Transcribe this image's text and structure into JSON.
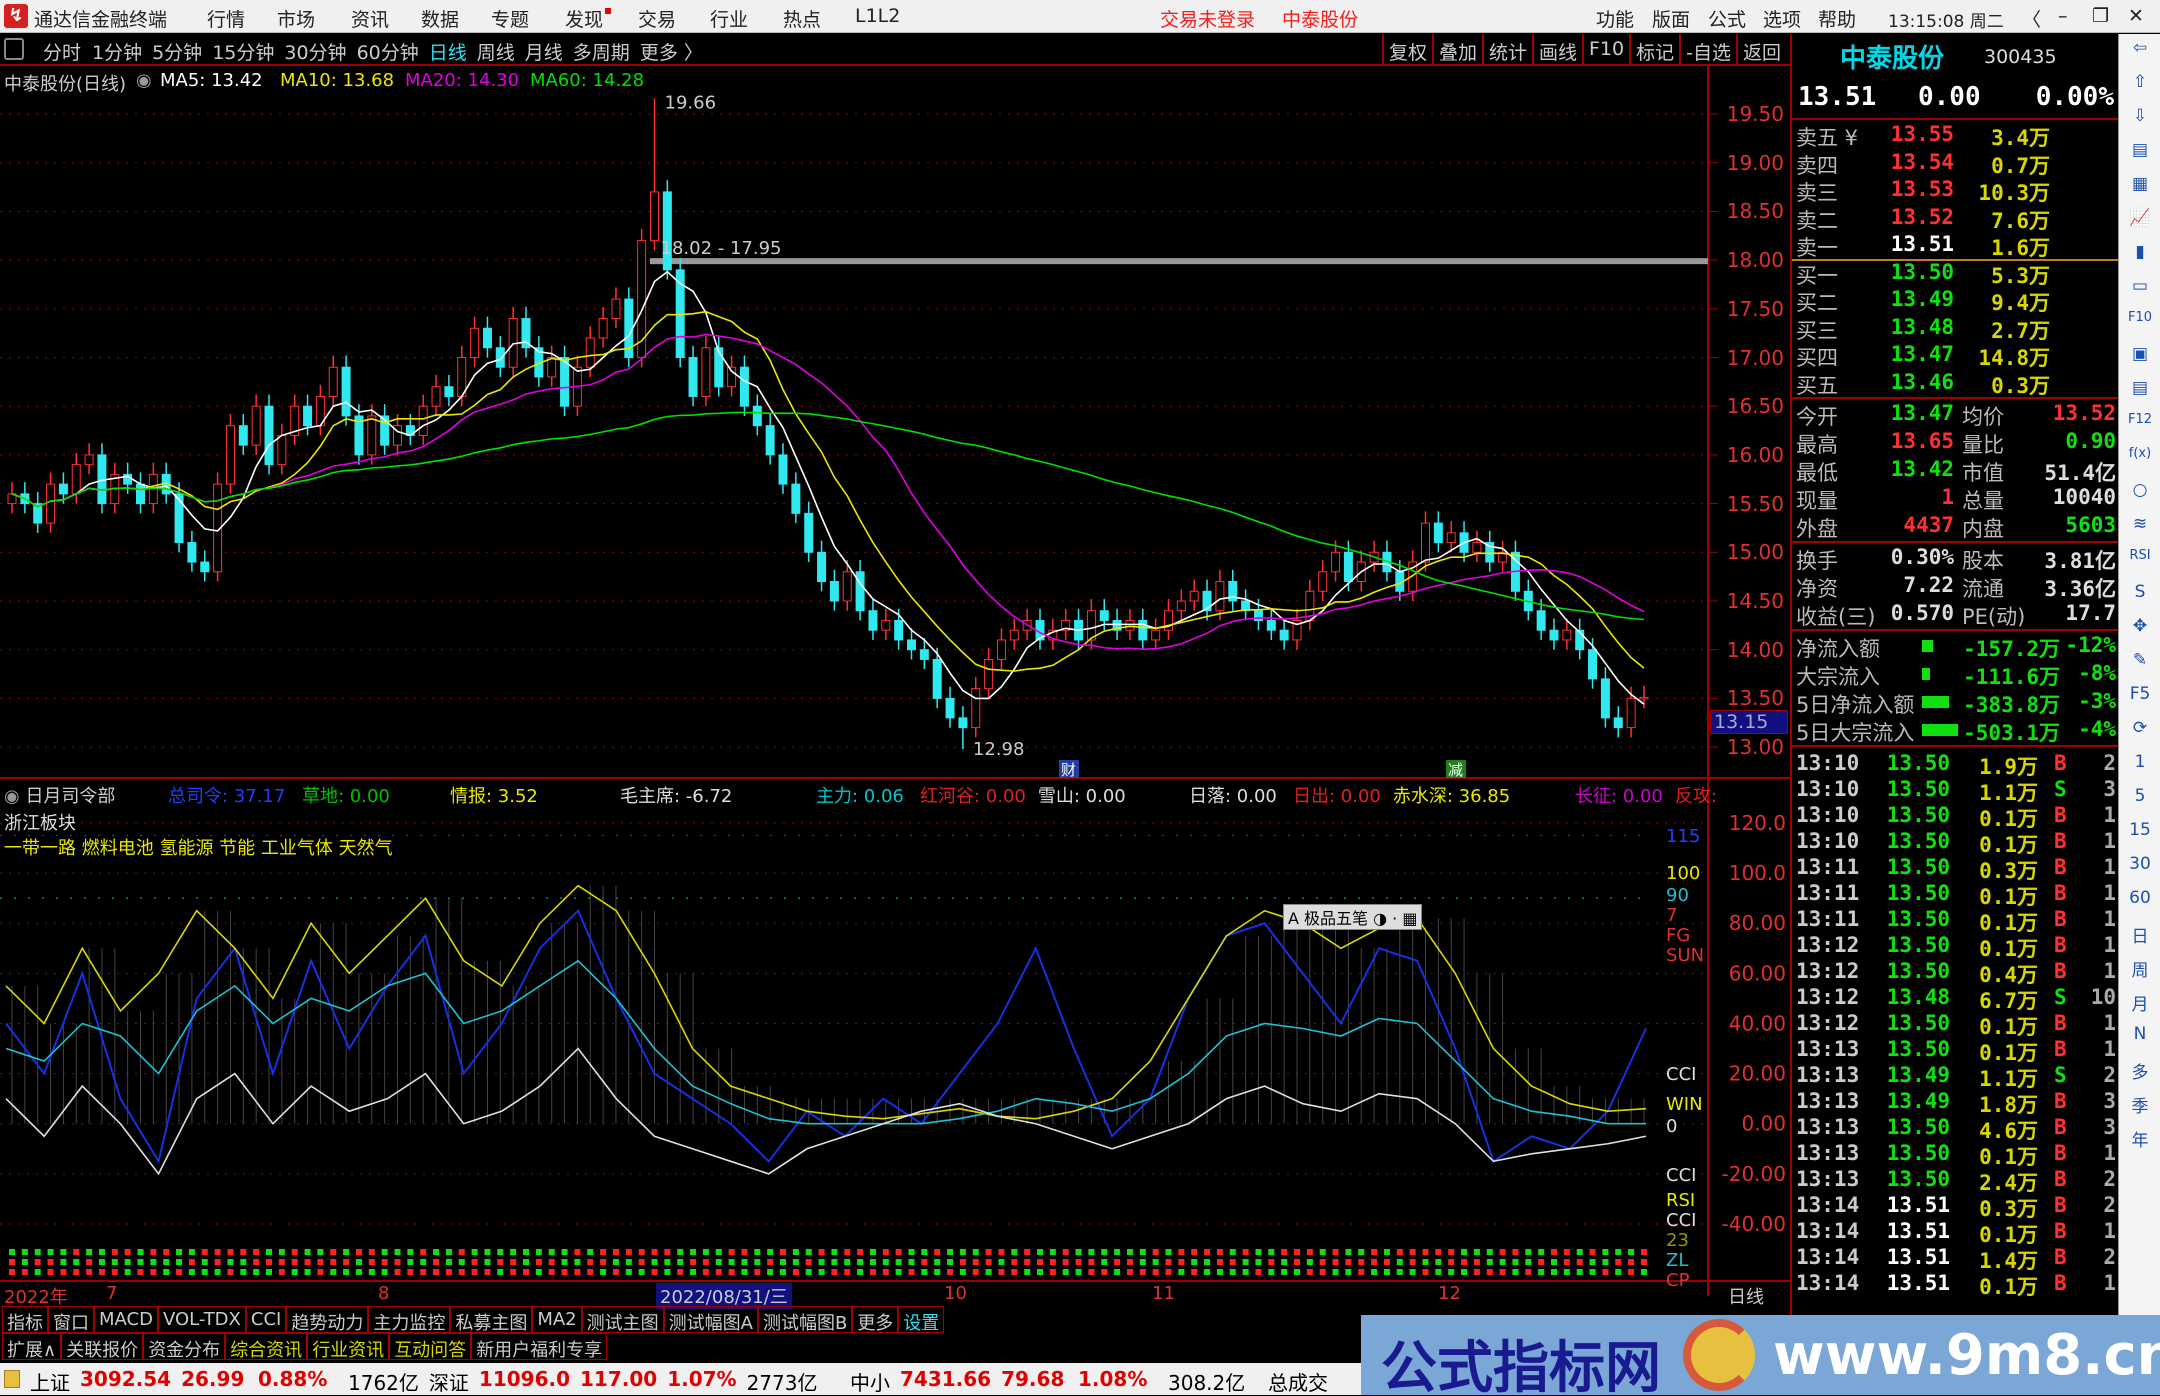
{
  "titlebar": {
    "app": "通达信金融终端",
    "menus": [
      "行情",
      "市场",
      "资讯",
      "数据",
      "专题",
      "发现",
      "交易",
      "行业",
      "热点",
      "L1L2"
    ],
    "trade_status": "交易未登录",
    "stock": "中泰股份",
    "right_menus": [
      "功能",
      "版面",
      "公式",
      "选项",
      "帮助"
    ],
    "clock": "13:15:08 周二"
  },
  "toolbar": {
    "periods": [
      "分时",
      "1分钟",
      "5分钟",
      "15分钟",
      "30分钟",
      "60分钟",
      "日线",
      "周线",
      "月线",
      "多周期",
      "更多 〉"
    ],
    "active": "日线",
    "right": [
      "复权",
      "叠加",
      "统计",
      "画线",
      "F10",
      "标记",
      "-自选",
      "返回"
    ]
  },
  "legend": {
    "name": "中泰股份(日线)",
    "ma5": "MA5: 13.42",
    "ma10": "MA10: 13.68",
    "ma20": "MA20: 14.30",
    "ma60": "MA60: 14.28",
    "colors": {
      "ma5": "#ffffff",
      "ma10": "#e8e800",
      "ma20": "#e000e0",
      "ma60": "#00e000"
    }
  },
  "chart_data": {
    "type": "candlestick",
    "ylim": [
      12.9,
      19.75
    ],
    "y_ticks": [
      "19.50",
      "19.00",
      "18.50",
      "18.00",
      "17.50",
      "17.00",
      "16.50",
      "16.00",
      "15.50",
      "15.00",
      "14.50",
      "14.00",
      "13.50",
      "13.00"
    ],
    "close": [
      15.6,
      15.5,
      15.3,
      15.7,
      15.6,
      15.9,
      16.0,
      15.5,
      15.8,
      15.7,
      15.5,
      15.8,
      15.6,
      15.1,
      14.9,
      14.8,
      15.7,
      16.3,
      16.1,
      16.5,
      15.9,
      16.2,
      16.5,
      16.3,
      16.6,
      16.9,
      16.4,
      16.0,
      16.4,
      16.1,
      16.3,
      16.2,
      16.5,
      16.7,
      16.6,
      17.0,
      17.3,
      17.1,
      16.9,
      17.4,
      17.1,
      16.8,
      17.0,
      16.5,
      16.9,
      17.2,
      17.4,
      17.6,
      17.0,
      18.2,
      18.7,
      17.9,
      17.0,
      16.6,
      17.1,
      16.7,
      16.9,
      16.5,
      16.3,
      16.0,
      15.7,
      15.4,
      15.0,
      14.7,
      14.5,
      14.8,
      14.4,
      14.2,
      14.3,
      14.1,
      14.0,
      13.9,
      13.5,
      13.3,
      13.2,
      13.6,
      13.9,
      14.1,
      14.2,
      14.3,
      14.1,
      14.2,
      14.3,
      14.1,
      14.4,
      14.3,
      14.2,
      14.3,
      14.1,
      14.2,
      14.4,
      14.5,
      14.6,
      14.4,
      14.7,
      14.5,
      14.4,
      14.3,
      14.2,
      14.1,
      14.3,
      14.6,
      14.8,
      15.0,
      14.7,
      14.9,
      15.0,
      14.8,
      14.6,
      14.9,
      15.3,
      15.1,
      15.2,
      15.0,
      15.1,
      14.9,
      15.0,
      14.6,
      14.4,
      14.2,
      14.1,
      14.2,
      14.0,
      13.7,
      13.3,
      13.2,
      13.5,
      13.51
    ],
    "max_label": "19.66",
    "min_label": "12.98",
    "band_label": "18.02 - 17.95",
    "current_box": "13.15",
    "markers": [
      "财",
      "减"
    ]
  },
  "x_axis": {
    "labels": [
      "2022年",
      "7",
      "8",
      "2022/08/31/三",
      "10",
      "11",
      "12"
    ],
    "period": "日线"
  },
  "indicator": {
    "name": "日月司令部",
    "items": [
      {
        "t": "总司令: 37.17",
        "c": "#2040ff"
      },
      {
        "t": "草地: 0.00",
        "c": "#00c000"
      },
      {
        "t": "情报: 3.52",
        "c": "#e8e800"
      },
      {
        "t": "毛主席: -6.72",
        "c": "#dddddd"
      },
      {
        "t": "主力: 0.06",
        "c": "#00c8c8"
      },
      {
        "t": "红河谷: 0.00",
        "c": "#e02020"
      },
      {
        "t": "雪山: 0.00",
        "c": "#dddddd"
      },
      {
        "t": "日落: 0.00",
        "c": "#dddddd"
      },
      {
        "t": "日出: 0.00",
        "c": "#e02020"
      },
      {
        "t": "赤水深: 36.85",
        "c": "#e8e800"
      },
      {
        "t": "长征: 0.00",
        "c": "#d000d0"
      },
      {
        "t": "反攻:",
        "c": "#e02020"
      }
    ],
    "sector": "浙江板块",
    "concepts": "一带一路 燃料电池 氢能源 节能 工业气体 天然气",
    "y_ticks": [
      "120.0",
      "100.0",
      "80.00",
      "60.00",
      "40.00",
      "20.00",
      "0.00",
      "-20.00",
      "-40.00"
    ],
    "right_labels": [
      "115",
      "100",
      "90",
      "7",
      "FG",
      "SUN",
      "CCI",
      "WIN",
      "0",
      "CCI",
      "RSI",
      "CCI",
      "23",
      "ZL",
      "CP"
    ],
    "tooltip": "极品五笔",
    "series": {
      "blue": [
        40,
        20,
        60,
        10,
        -15,
        50,
        70,
        20,
        65,
        30,
        55,
        75,
        20,
        40,
        70,
        85,
        50,
        20,
        10,
        0,
        -15,
        5,
        -5,
        10,
        0,
        20,
        40,
        70,
        30,
        -5,
        10,
        50,
        75,
        80,
        60,
        40,
        70,
        65,
        30,
        -15,
        -5,
        -10,
        5,
        38
      ],
      "yellow": [
        55,
        40,
        70,
        45,
        60,
        85,
        70,
        50,
        80,
        60,
        75,
        90,
        65,
        55,
        80,
        95,
        85,
        60,
        30,
        15,
        10,
        5,
        3,
        2,
        4,
        6,
        3,
        2,
        5,
        10,
        25,
        50,
        75,
        85,
        80,
        70,
        78,
        82,
        60,
        30,
        15,
        8,
        5,
        6
      ],
      "cyan": [
        30,
        25,
        40,
        35,
        20,
        45,
        55,
        40,
        50,
        45,
        55,
        60,
        40,
        45,
        55,
        65,
        50,
        30,
        15,
        8,
        2,
        0,
        0,
        0,
        0,
        2,
        5,
        10,
        8,
        5,
        10,
        20,
        35,
        40,
        38,
        35,
        42,
        40,
        25,
        10,
        5,
        3,
        0,
        0
      ],
      "white": [
        10,
        -5,
        15,
        0,
        -20,
        10,
        20,
        0,
        15,
        5,
        10,
        20,
        0,
        5,
        15,
        30,
        10,
        -5,
        -10,
        -15,
        -20,
        -10,
        -5,
        0,
        5,
        8,
        3,
        0,
        -5,
        -10,
        -5,
        0,
        10,
        15,
        8,
        5,
        12,
        10,
        0,
        -15,
        -12,
        -10,
        -8,
        -5
      ]
    }
  },
  "tabs1": [
    "指标",
    "窗口",
    "MACD",
    "VOL-TDX",
    "CCI",
    "趋势动力",
    "主力监控",
    "私募主图",
    "MA2",
    "测试主图",
    "测试幅图A",
    "测试幅图B",
    "更多",
    "设置"
  ],
  "tabs2": [
    "扩展∧",
    "关联报价",
    "资金分布",
    "综合资讯",
    "行业资讯",
    "互动问答",
    "新用户福利专享"
  ],
  "quote": {
    "name": "中泰股份",
    "code": "300435",
    "price": "13.51",
    "change": "0.00",
    "pct": "0.00%",
    "asks": [
      [
        "卖五 ¥",
        "13.55",
        "3.4万"
      ],
      [
        "卖四",
        "13.54",
        "0.7万"
      ],
      [
        "卖三",
        "13.53",
        "10.3万"
      ],
      [
        "卖二",
        "13.52",
        "7.6万"
      ],
      [
        "卖一",
        "13.51",
        "1.6万"
      ]
    ],
    "bids": [
      [
        "买一",
        "13.50",
        "5.3万"
      ],
      [
        "买二",
        "13.49",
        "9.4万"
      ],
      [
        "买三",
        "13.48",
        "2.7万"
      ],
      [
        "买四",
        "13.47",
        "14.8万"
      ],
      [
        "买五",
        "13.46",
        "0.3万"
      ]
    ],
    "stats": [
      [
        "今开",
        "13.47",
        "均价",
        "13.52"
      ],
      [
        "最高",
        "13.65",
        "量比",
        "0.90"
      ],
      [
        "最低",
        "13.42",
        "市值",
        "51.4亿"
      ],
      [
        "现量",
        "1",
        "总量",
        "10040"
      ],
      [
        "外盘",
        "4437",
        "内盘",
        "5603"
      ]
    ],
    "fund": [
      [
        "换手",
        "0.30%",
        "股本",
        "3.81亿"
      ],
      [
        "净资",
        "7.22",
        "流通",
        "3.36亿"
      ],
      [
        "收益(三)",
        "0.570",
        "PE(动)",
        "17.7"
      ]
    ],
    "flow": [
      [
        "净流入额",
        "-157.2万",
        "-12%"
      ],
      [
        "大宗流入",
        "-111.6万",
        "-8%"
      ],
      [
        "5日净流入额",
        "-383.8万",
        "-3%"
      ],
      [
        "5日大宗流入",
        "-503.1万",
        "-4%"
      ]
    ],
    "ticks": [
      [
        "13:10",
        "13.50",
        "1.9万",
        "B",
        "2"
      ],
      [
        "13:10",
        "13.50",
        "1.1万",
        "S",
        "3"
      ],
      [
        "13:10",
        "13.50",
        "0.1万",
        "B",
        "1"
      ],
      [
        "13:10",
        "13.50",
        "0.1万",
        "B",
        "1"
      ],
      [
        "13:11",
        "13.50",
        "0.3万",
        "B",
        "1"
      ],
      [
        "13:11",
        "13.50",
        "0.1万",
        "B",
        "1"
      ],
      [
        "13:11",
        "13.50",
        "0.1万",
        "B",
        "1"
      ],
      [
        "13:12",
        "13.50",
        "0.1万",
        "B",
        "1"
      ],
      [
        "13:12",
        "13.50",
        "0.4万",
        "B",
        "1"
      ],
      [
        "13:12",
        "13.48",
        "6.7万",
        "S",
        "10"
      ],
      [
        "13:12",
        "13.50",
        "0.1万",
        "B",
        "1"
      ],
      [
        "13:13",
        "13.50",
        "0.1万",
        "B",
        "1"
      ],
      [
        "13:13",
        "13.49",
        "1.1万",
        "S",
        "2"
      ],
      [
        "13:13",
        "13.49",
        "1.8万",
        "B",
        "3"
      ],
      [
        "13:13",
        "13.50",
        "4.6万",
        "B",
        "3"
      ],
      [
        "13:13",
        "13.50",
        "0.1万",
        "B",
        "1"
      ],
      [
        "13:13",
        "13.50",
        "2.4万",
        "B",
        "2"
      ],
      [
        "13:14",
        "13.51",
        "0.3万",
        "B",
        "2"
      ],
      [
        "13:14",
        "13.51",
        "0.1万",
        "B",
        "1"
      ],
      [
        "13:14",
        "13.51",
        "1.4万",
        "B",
        "2"
      ],
      [
        "13:14",
        "13.51",
        "0.1万",
        "B",
        "1"
      ]
    ]
  },
  "side_icons": [
    "⇦",
    "⇧",
    "⇩",
    "▤",
    "▦",
    "📈",
    "▮",
    "▭",
    "F10",
    "▣",
    "▤",
    "F12",
    "f(x)",
    "○",
    "≋",
    "RSI",
    "S",
    "✥",
    "✎",
    "F5",
    "⟳",
    "1",
    "5",
    "15",
    "30",
    "60",
    "日",
    "周",
    "月",
    "N",
    "多",
    "季",
    "年"
  ],
  "status": {
    "items": [
      [
        "上证",
        "3092.54",
        "26.99",
        "0.88%",
        "1762亿"
      ],
      [
        "深证",
        "11096.0",
        "117.00",
        "1.07%",
        "2773亿"
      ],
      [
        "中小",
        "7431.66",
        "79.68",
        "1.08%",
        "308.2亿"
      ]
    ],
    "total_label": "总成交"
  },
  "watermark": {
    "text": "公式指标网",
    "url": "www.9m8.cn"
  }
}
